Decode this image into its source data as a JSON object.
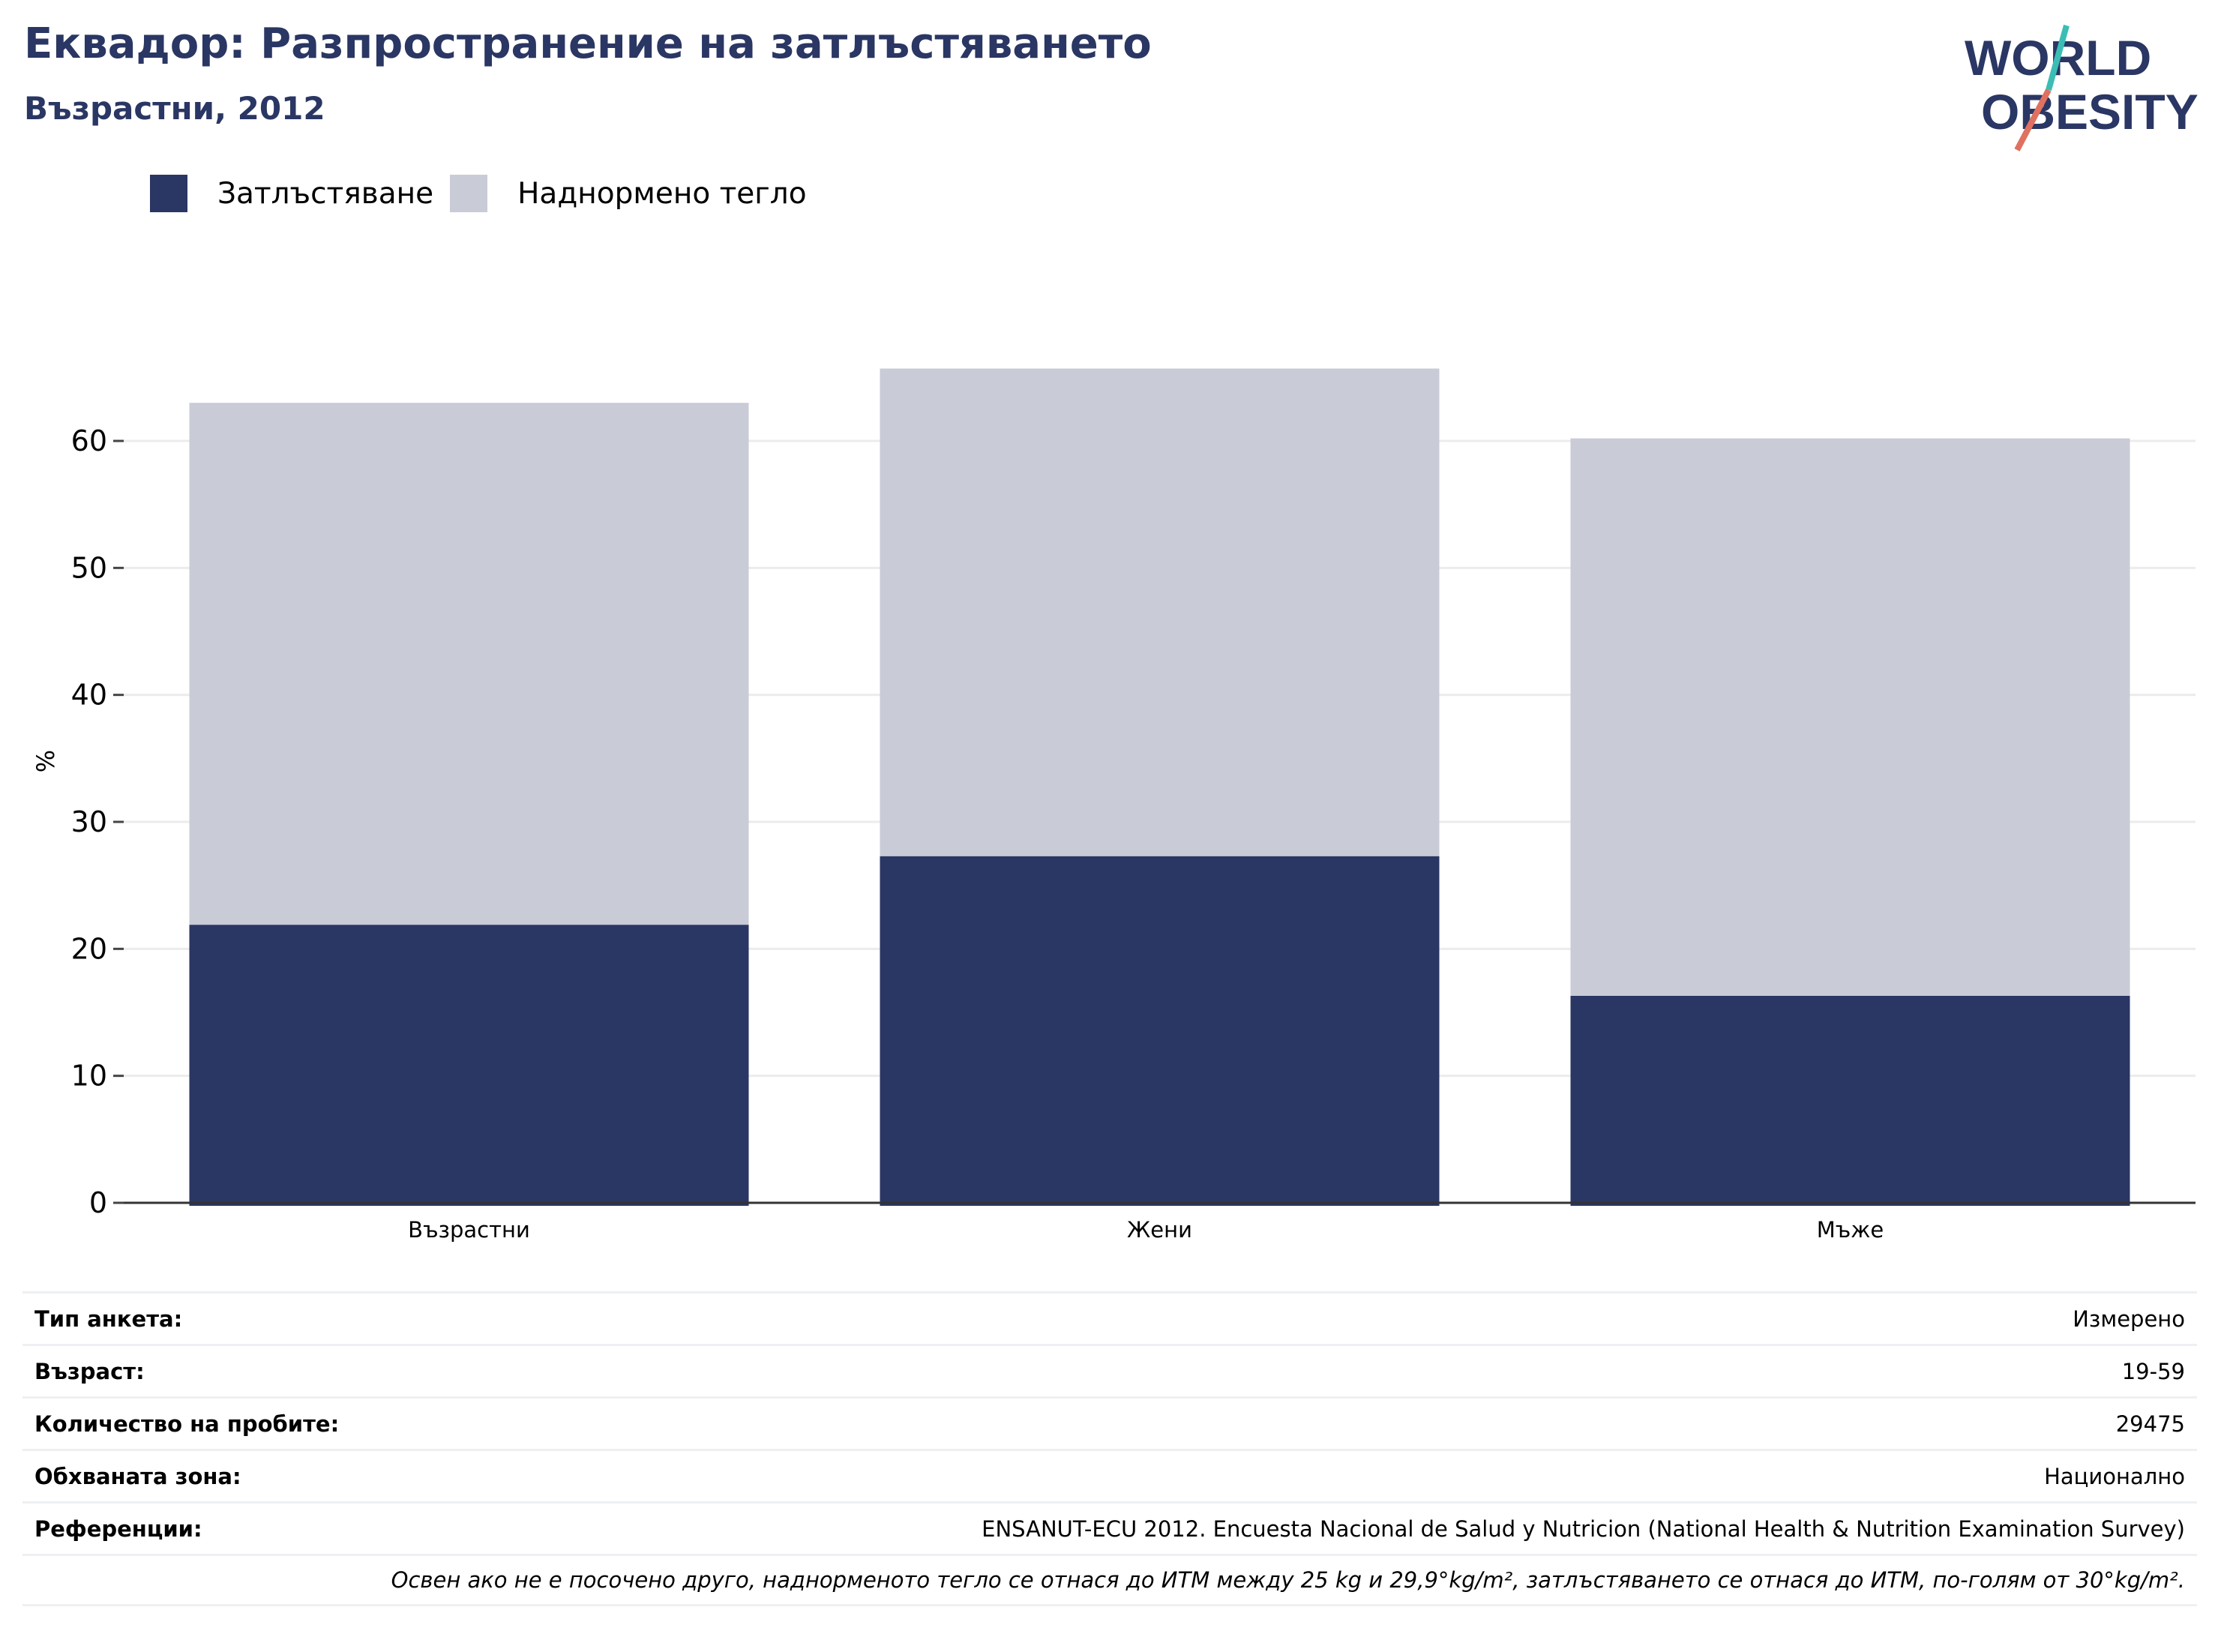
{
  "header": {
    "title": "Еквадор: Разпространение на затлъстяването",
    "subtitle": "Възрастни, 2012"
  },
  "logo": {
    "line1": "WORLD",
    "line2": "OBESITY"
  },
  "colors": {
    "obesity": "#2a3663",
    "overweight": "#c9cbd7",
    "title": "#2a3663"
  },
  "chart_data": {
    "type": "bar",
    "stacked": true,
    "categories": [
      "Възрастни",
      "Жени",
      "Мъже"
    ],
    "series": [
      {
        "name": "Затлъстяване",
        "values": [
          21.9,
          27.3,
          16.3
        ]
      },
      {
        "name": "Наднормено тегло",
        "values": [
          41.1,
          38.4,
          43.9
        ]
      }
    ],
    "ylabel": "%",
    "ylim": [
      0,
      70
    ],
    "yticks": [
      0,
      10,
      20,
      30,
      40,
      50,
      60
    ],
    "grid": true,
    "legend": "top-left"
  },
  "info": {
    "rows": [
      {
        "label": "Тип анкета:",
        "value": "Измерено"
      },
      {
        "label": "Възраст:",
        "value": "19-59"
      },
      {
        "label": "Количество на пробите:",
        "value": "29475"
      },
      {
        "label": "Обхваната зона:",
        "value": "Национално"
      },
      {
        "label": "Референции:",
        "value": "ENSANUT-ECU 2012. Encuesta Nacional de Salud y Nutricion (National Health & Nutrition Examination Survey)"
      }
    ],
    "note": "Освен ако не е посочено друго, наднорменото тегло се отнася до ИТМ между 25 kg и 29,9°kg/m², затлъстяването се отнася до ИТМ, по-голям от 30°kg/m²."
  }
}
